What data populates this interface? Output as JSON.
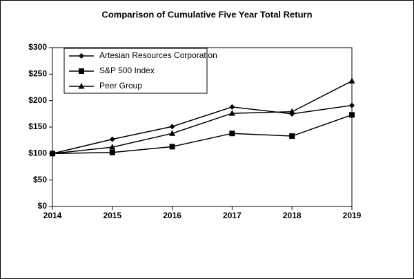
{
  "chart_data": {
    "type": "line",
    "title": "Comparison of Cumulative Five Year Total Return",
    "x": [
      2014,
      2015,
      2016,
      2017,
      2018,
      2019
    ],
    "xlim": [
      2014,
      2019
    ],
    "xticks": [
      2014,
      2015,
      2016,
      2017,
      2018,
      2019
    ],
    "ylim": [
      0,
      300
    ],
    "yticks": [
      {
        "value": 0,
        "label": "$0"
      },
      {
        "value": 50,
        "label": "$50"
      },
      {
        "value": 100,
        "label": "$100"
      },
      {
        "value": 150,
        "label": "$150"
      },
      {
        "value": 200,
        "label": "$200"
      },
      {
        "value": 250,
        "label": "$250"
      },
      {
        "value": 300,
        "label": "$300"
      }
    ],
    "grid": false,
    "legend": "upper left",
    "series": [
      {
        "name": "Artesian Resources Corporation",
        "color": "#000000",
        "marker": "diamond",
        "values": [
          100,
          127,
          151,
          188,
          175,
          191
        ]
      },
      {
        "name": "S&P 500 Index",
        "color": "#000000",
        "marker": "square",
        "values": [
          100,
          102,
          113,
          138,
          133,
          173
        ]
      },
      {
        "name": "Peer Group",
        "color": "#000000",
        "marker": "triangle",
        "values": [
          100,
          112,
          138,
          176,
          179,
          237
        ]
      }
    ]
  }
}
